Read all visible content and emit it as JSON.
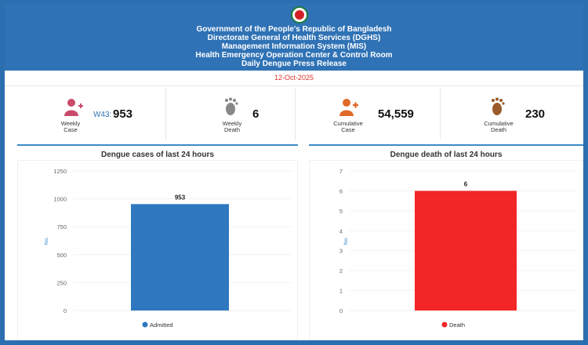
{
  "header": {
    "lines": [
      "Government of the People's Republic of Bangladesh",
      "Directorate General of Health Services (DGHS)",
      "Management Information System (MIS)",
      "Health Emergency Operation Center & Control Room",
      "Daily Dengue Press Release"
    ],
    "date": "12-Oct-2025"
  },
  "stats": {
    "weekly_case": {
      "label_1": "Weekly",
      "label_2": "Case",
      "week": "W43:",
      "value": "953",
      "icon": "person-icon",
      "color": "#c94a6b"
    },
    "weekly_death": {
      "label_1": "Weekly",
      "label_2": "Death",
      "value": "6",
      "icon": "footprint-icon",
      "color": "#888888"
    },
    "cumulative_case": {
      "label_1": "Cumulative",
      "label_2": "Case",
      "value": "54,559",
      "icon": "person-add-icon",
      "color": "#e06a2a"
    },
    "cumulative_death": {
      "label_1": "Cumulative",
      "label_2": "Death",
      "value": "230",
      "icon": "footprint-icon",
      "color": "#9a5a2a"
    }
  },
  "chart_data": [
    {
      "type": "bar",
      "title": "Dengue cases of last 24 hours",
      "ylabel": "No.",
      "xlabel": "",
      "ylim": [
        0,
        1250
      ],
      "yticks": [
        0,
        250,
        500,
        750,
        1000,
        1250
      ],
      "series": [
        {
          "name": "Admitted",
          "values": [
            953
          ],
          "color": "#2f78c0"
        }
      ],
      "data_labels": [
        "953"
      ],
      "legend": "bottom"
    },
    {
      "type": "bar",
      "title": "Dengue death of last 24 hours",
      "ylabel": "No.",
      "xlabel": "",
      "ylim": [
        0,
        7
      ],
      "yticks": [
        0,
        1,
        2,
        3,
        4,
        5,
        6,
        7
      ],
      "series": [
        {
          "name": "Death",
          "values": [
            6
          ],
          "color": "#f22626"
        }
      ],
      "data_labels": [
        "6"
      ],
      "legend": "bottom"
    }
  ]
}
